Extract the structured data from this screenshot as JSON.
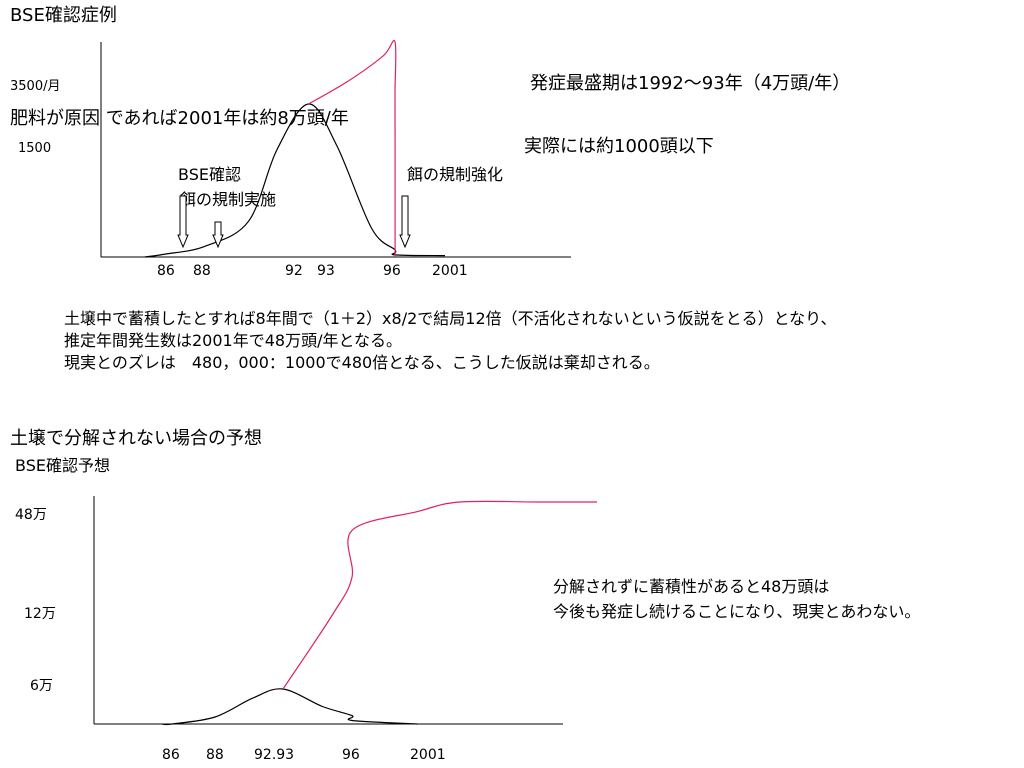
{
  "slide": {
    "title": "BSE確認症例",
    "y_label_3500": "3500/月",
    "y_label_1500": "1500",
    "note_fertilizer": "肥料が原因 であれば2001年は約8万頭/年",
    "note_peak": "発症最盛期は1992～93年（4万頭/年）",
    "note_actual": "実際には約1000頭以下",
    "arrow_bse_confirm": "BSE確認",
    "arrow_feed_reg": "餌の規制実施",
    "arrow_feed_strengthen": "餌の規制強化",
    "paragraph": [
      "土壌中で蓄積したとすれば8年間で（1＋2）x8/2で結局12倍（不活化されないという仮説をとる）となり、",
      "推定年間発生数は2001年で48万頭/年となる。",
      "現実とのズレは　480，000：1000で480倍となる、こうした仮説は棄却される。"
    ],
    "section2_title": "土壌で分解されない場合の予想",
    "section2_subtitle": "BSE確認予想",
    "y2_label_48": "48万",
    "y2_label_12": "12万",
    "y2_label_6": "6万",
    "note2_line1": "分解されずに蓄積性があると48万頭は",
    "note2_line2": "今後も発症し続けることになり、現実とあわない。"
  },
  "chart_data": [
    {
      "type": "line",
      "title": "BSE確認症例",
      "x_tick_labels": [
        "86",
        "88",
        "92",
        "93",
        "96",
        "2001"
      ],
      "y_tick_labels": [
        "3500/月",
        "1500"
      ],
      "colors": {
        "actual": "#000000",
        "hypothetical": "#e0215a"
      },
      "series": [
        {
          "values": [
            [
              84.5,
              0
            ],
            [
              86,
              40
            ],
            [
              88,
              150
            ],
            [
              90,
              500
            ],
            [
              91.3,
              1500
            ],
            [
              92.5,
              3500
            ],
            [
              93.5,
              1700
            ],
            [
              95,
              400
            ],
            [
              96,
              100
            ],
            [
              98,
              30
            ],
            [
              2001,
              20
            ]
          ]
        },
        {
          "values": [
            [
              92.5,
              3500
            ],
            [
              94,
              4500
            ],
            [
              95.5,
              5600
            ],
            [
              96.5,
              6200
            ],
            [
              97.5,
              4000
            ],
            [
              98.5,
              1500
            ],
            [
              99.5,
              0
            ]
          ]
        }
      ],
      "annotations": [
        "BSE確認",
        "餌の規制実施",
        "餌の規制強化"
      ]
    },
    {
      "type": "line",
      "title": "BSE確認予想",
      "x_tick_labels": [
        "86",
        "88",
        "92.93",
        "96",
        "2001"
      ],
      "y_tick_labels": [
        "48万",
        "12万",
        "6万"
      ],
      "colors": {
        "actual": "#000000",
        "hypothetical": "#e0215a"
      },
      "series": [
        {
          "values": [
            [
              85,
              0
            ],
            [
              86,
              0
            ],
            [
              88,
              10000
            ],
            [
              90.5,
              37000
            ],
            [
              92.5,
              50000
            ],
            [
              94.5,
              25000
            ],
            [
              96,
              12000
            ],
            [
              98,
              5000
            ],
            [
              2001,
              0
            ]
          ]
        },
        {
          "values": [
            [
              92.5,
              50000
            ],
            [
              95,
              120000
            ],
            [
              97,
              240000
            ],
            [
              99,
              390000
            ],
            [
              2001,
              450000
            ],
            [
              2003,
              480000
            ],
            [
              2006,
              480000
            ],
            [
              2008,
              480000
            ]
          ]
        }
      ]
    }
  ]
}
